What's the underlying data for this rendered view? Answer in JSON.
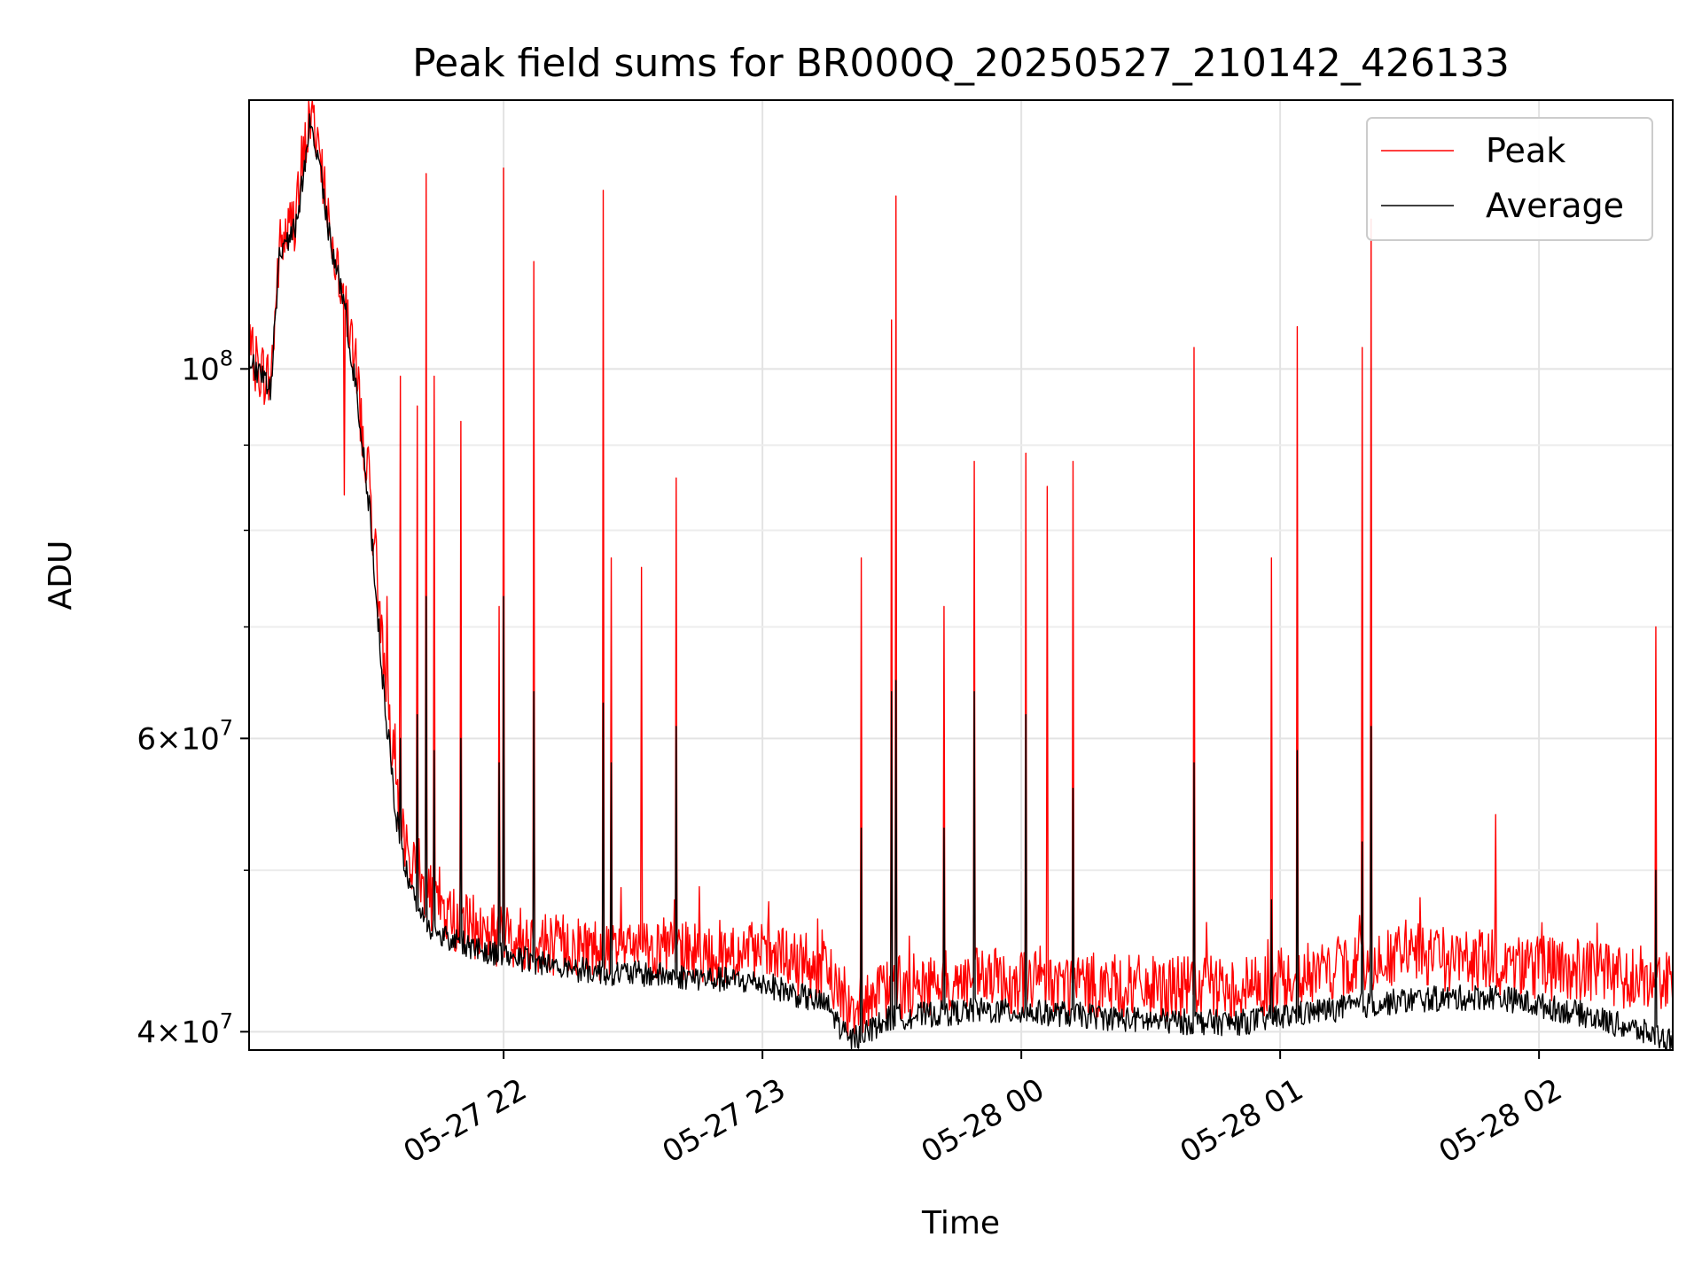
{
  "chart_data": {
    "type": "line",
    "title": "Peak field sums for BR000Q_20250527_210142_426133",
    "xlabel": "Time",
    "ylabel": "ADU",
    "y_scale": "log",
    "ylim": [
      39000000,
      145000000
    ],
    "xlim": [
      "05-27 21:01",
      "05-28 02:31"
    ],
    "x_ticks": [
      {
        "label": "05-27 22",
        "hour": 22
      },
      {
        "label": "05-27 23",
        "hour": 23
      },
      {
        "label": "05-28 00",
        "hour": 24
      },
      {
        "label": "05-28 01",
        "hour": 25
      },
      {
        "label": "05-28 02",
        "hour": 26
      }
    ],
    "y_ticks": [
      {
        "value": 40000000,
        "mantissa": "4",
        "exponent": "7"
      },
      {
        "value": 60000000,
        "mantissa": "6",
        "exponent": "7"
      },
      {
        "value": 100000000,
        "base": "10",
        "exponent": "8"
      }
    ],
    "y_minor_ticks": [
      50000000,
      70000000,
      80000000,
      90000000
    ],
    "grid": true,
    "legend_position": "top-right",
    "series": [
      {
        "name": "Peak",
        "color": "#ff0000",
        "baseline": [
          [
            "05-27 21:01",
            102000000
          ],
          [
            "05-27 21:05",
            99000000
          ],
          [
            "05-27 21:06",
            98000000
          ],
          [
            "05-27 21:08",
            118000000
          ],
          [
            "05-27 21:12",
            124000000
          ],
          [
            "05-27 21:15",
            142000000
          ],
          [
            "05-27 21:17",
            138000000
          ],
          [
            "05-27 21:20",
            120000000
          ],
          [
            "05-27 21:23",
            112000000
          ],
          [
            "05-27 21:26",
            98000000
          ],
          [
            "05-27 21:29",
            85000000
          ],
          [
            "05-27 21:32",
            68000000
          ],
          [
            "05-27 21:35",
            56000000
          ],
          [
            "05-27 21:38",
            51000000
          ],
          [
            "05-27 21:42",
            48500000
          ],
          [
            "05-27 21:47",
            47000000
          ],
          [
            "05-27 21:55",
            46000000
          ],
          [
            "05-27 22:05",
            45500000
          ],
          [
            "05-27 22:20",
            45000000
          ],
          [
            "05-27 22:40",
            44800000
          ],
          [
            "05-27 23:00",
            44500000
          ],
          [
            "05-27 23:15",
            43500000
          ],
          [
            "05-27 23:20",
            41500000
          ],
          [
            "05-27 23:30",
            42500000
          ],
          [
            "05-27 23:50",
            43000000
          ],
          [
            "05-28 00:10",
            42800000
          ],
          [
            "05-28 00:30",
            42500000
          ],
          [
            "05-28 00:50",
            42500000
          ],
          [
            "05-28 01:10",
            43500000
          ],
          [
            "05-28 01:30",
            44500000
          ],
          [
            "05-28 01:50",
            44000000
          ],
          [
            "05-28 02:10",
            43500000
          ],
          [
            "05-28 02:31",
            43000000
          ]
        ],
        "spikes": [
          [
            "05-27 21:23",
            84000000
          ],
          [
            "05-27 21:27",
            96000000
          ],
          [
            "05-27 21:33",
            73000000
          ],
          [
            "05-27 21:36",
            99000000
          ],
          [
            "05-27 21:40",
            95000000
          ],
          [
            "05-27 21:42",
            131000000
          ],
          [
            "05-27 21:44",
            99000000
          ],
          [
            "05-27 21:50",
            93000000
          ],
          [
            "05-27 21:59",
            72000000
          ],
          [
            "05-27 22:00",
            132000000
          ],
          [
            "05-27 22:07",
            116000000
          ],
          [
            "05-27 22:23",
            128000000
          ],
          [
            "05-27 22:25",
            77000000
          ],
          [
            "05-27 22:32",
            76000000
          ],
          [
            "05-27 22:40",
            86000000
          ],
          [
            "05-27 23:23",
            77000000
          ],
          [
            "05-27 23:30",
            107000000
          ],
          [
            "05-27 23:31",
            127000000
          ],
          [
            "05-27 23:42",
            72000000
          ],
          [
            "05-27 23:49",
            88000000
          ],
          [
            "05-28 00:01",
            89000000
          ],
          [
            "05-28 00:06",
            85000000
          ],
          [
            "05-28 00:12",
            88000000
          ],
          [
            "05-28 00:40",
            103000000
          ],
          [
            "05-28 00:58",
            77000000
          ],
          [
            "05-28 01:04",
            106000000
          ],
          [
            "05-28 01:19",
            103000000
          ],
          [
            "05-28 01:21",
            123000000
          ],
          [
            "05-28 01:50",
            54000000
          ],
          [
            "05-28 02:27",
            70000000
          ]
        ]
      },
      {
        "name": "Average",
        "color": "#000000",
        "baseline": [
          [
            "05-27 21:01",
            101000000
          ],
          [
            "05-27 21:05",
            98000000
          ],
          [
            "05-27 21:06",
            97000000
          ],
          [
            "05-27 21:08",
            117000000
          ],
          [
            "05-27 21:12",
            122000000
          ],
          [
            "05-27 21:15",
            140000000
          ],
          [
            "05-27 21:17",
            135000000
          ],
          [
            "05-27 21:20",
            118000000
          ],
          [
            "05-27 21:23",
            110000000
          ],
          [
            "05-27 21:26",
            96000000
          ],
          [
            "05-27 21:29",
            82000000
          ],
          [
            "05-27 21:32",
            65000000
          ],
          [
            "05-27 21:35",
            54000000
          ],
          [
            "05-27 21:38",
            49000000
          ],
          [
            "05-27 21:42",
            46500000
          ],
          [
            "05-27 21:47",
            45500000
          ],
          [
            "05-27 21:55",
            44800000
          ],
          [
            "05-27 22:05",
            44200000
          ],
          [
            "05-27 22:20",
            43500000
          ],
          [
            "05-27 22:40",
            43200000
          ],
          [
            "05-27 23:00",
            42800000
          ],
          [
            "05-27 23:15",
            41500000
          ],
          [
            "05-27 23:20",
            39500000
          ],
          [
            "05-27 23:30",
            40800000
          ],
          [
            "05-27 23:50",
            41200000
          ],
          [
            "05-28 00:10",
            41000000
          ],
          [
            "05-28 00:30",
            40600000
          ],
          [
            "05-28 00:50",
            40500000
          ],
          [
            "05-28 01:10",
            41200000
          ],
          [
            "05-28 01:30",
            41800000
          ],
          [
            "05-28 01:50",
            42000000
          ],
          [
            "05-28 02:10",
            41000000
          ],
          [
            "05-28 02:31",
            39500000
          ]
        ],
        "spikes": [
          [
            "05-27 21:33",
            60000000
          ],
          [
            "05-27 21:36",
            60000000
          ],
          [
            "05-27 21:40",
            62000000
          ],
          [
            "05-27 21:42",
            73000000
          ],
          [
            "05-27 21:44",
            59000000
          ],
          [
            "05-27 21:50",
            60000000
          ],
          [
            "05-27 21:59",
            58000000
          ],
          [
            "05-27 22:00",
            73000000
          ],
          [
            "05-27 22:07",
            64000000
          ],
          [
            "05-27 22:23",
            63000000
          ],
          [
            "05-27 22:25",
            58000000
          ],
          [
            "05-27 22:40",
            61000000
          ],
          [
            "05-27 23:23",
            53000000
          ],
          [
            "05-27 23:30",
            64000000
          ],
          [
            "05-27 23:31",
            65000000
          ],
          [
            "05-27 23:42",
            53000000
          ],
          [
            "05-27 23:49",
            64000000
          ],
          [
            "05-28 00:01",
            62000000
          ],
          [
            "05-28 00:12",
            56000000
          ],
          [
            "05-28 00:40",
            58000000
          ],
          [
            "05-28 00:58",
            48000000
          ],
          [
            "05-28 01:04",
            59000000
          ],
          [
            "05-28 01:19",
            52000000
          ],
          [
            "05-28 01:21",
            61000000
          ],
          [
            "05-28 02:27",
            50000000
          ]
        ]
      }
    ]
  }
}
